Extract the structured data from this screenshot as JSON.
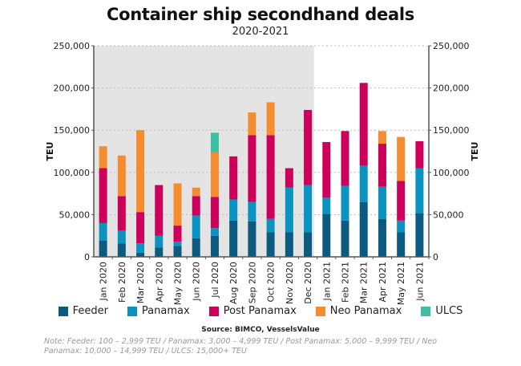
{
  "chart_data": {
    "type": "bar",
    "stacked": true,
    "title": "Container ship secondhand deals",
    "subtitle": "2020-2021",
    "xlabel": "",
    "ylabel": "TEU",
    "ylabel_right": "TEU",
    "ylim": [
      0,
      250000
    ],
    "yticks": [
      0,
      50000,
      100000,
      150000,
      200000,
      250000
    ],
    "ytick_labels": [
      "0",
      "50,000",
      "100,000",
      "150,000",
      "200,000",
      "250,000"
    ],
    "grid": true,
    "legend_position": "bottom",
    "shaded_region": {
      "from": "Jan 2020",
      "to": "Dec 2020"
    },
    "categories": [
      "Jan 2020",
      "Feb 2020",
      "Mar 2020",
      "Apr 2020",
      "May 2020",
      "Jun 2020",
      "Jul 2020",
      "Aug 2020",
      "Sep 2020",
      "Oct 2020",
      "Nov 2020",
      "Dec 2020",
      "Jan 2021",
      "Feb 2021",
      "Mar 2021",
      "Apr 2021",
      "May 2021",
      "Jun 2021"
    ],
    "series": [
      {
        "name": "Feeder",
        "color": "#0b5a80",
        "values": [
          19000,
          16000,
          5000,
          11000,
          13000,
          22000,
          25000,
          43000,
          42000,
          29000,
          29000,
          29000,
          51000,
          43000,
          65000,
          45000,
          29000,
          52000
        ]
      },
      {
        "name": "Panamax",
        "color": "#0a93c0",
        "values": [
          21000,
          15000,
          11000,
          14000,
          5000,
          27000,
          9000,
          25000,
          23000,
          16000,
          53000,
          56000,
          19000,
          41000,
          43000,
          38000,
          14000,
          53000
        ]
      },
      {
        "name": "Post Panamax",
        "color": "#cc005a",
        "values": [
          65000,
          41000,
          37000,
          60000,
          19000,
          23000,
          37000,
          51000,
          79000,
          99000,
          23000,
          89000,
          66000,
          65000,
          98000,
          51000,
          47000,
          32000
        ]
      },
      {
        "name": "Neo Panamax",
        "color": "#f58c2f",
        "values": [
          26000,
          48000,
          97000,
          0,
          50000,
          10000,
          53000,
          0,
          27000,
          39000,
          0,
          0,
          0,
          0,
          0,
          15000,
          52000,
          0
        ]
      },
      {
        "name": "ULCS",
        "color": "#3cbfa5",
        "values": [
          0,
          0,
          0,
          0,
          0,
          0,
          23000,
          0,
          0,
          0,
          0,
          0,
          0,
          0,
          0,
          0,
          0,
          0
        ]
      }
    ]
  },
  "source": "Source: BIMCO, VesselsValue",
  "note": "Note: Feeder: 100 – 2,999 TEU / Panamax: 3,000 – 4,999 TEU / Post Panamax: 5,000 – 9,999 TEU / Neo Panamax: 10,000 – 14,999 TEU / ULCS: 15,000+ TEU"
}
